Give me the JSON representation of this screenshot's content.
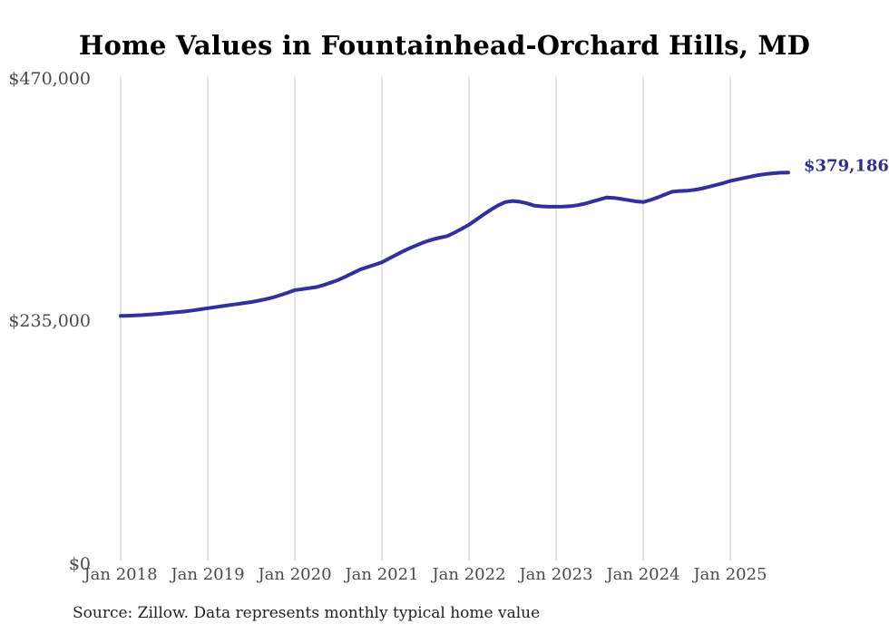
{
  "title": "Home Values in Fountainhead-Orchard Hills, MD",
  "end_label": "$379,186",
  "source_note": "Source: Zillow. Data represents monthly typical home value",
  "colors": {
    "line": "#332f9e",
    "end_label": "#302d90",
    "grid": "#c9c9c9",
    "axis_text": "#4a4a4a",
    "title_text": "#000000",
    "source_text": "#222222",
    "background": "#ffffff"
  },
  "chart_data": {
    "type": "line",
    "title": "Home Values in Fountainhead-Orchard Hills, MD",
    "xlabel": "",
    "ylabel": "",
    "ylim": [
      0,
      470000
    ],
    "y_tick_values": [
      470000,
      235000,
      0
    ],
    "y_tick_labels": [
      "$470,000",
      "$235,000",
      "$0"
    ],
    "x_tick_labels": [
      "Jan 2018",
      "Jan 2019",
      "Jan 2020",
      "Jan 2021",
      "Jan 2022",
      "Jan 2023",
      "Jan 2024",
      "Jan 2025"
    ],
    "grid": "vertical-only",
    "legend": "none",
    "final_value": 379186,
    "final_value_label": "$379,186",
    "series": [
      {
        "name": "Typical home value",
        "months": [
          "2018-01",
          "2018-02",
          "2018-03",
          "2018-04",
          "2018-05",
          "2018-06",
          "2018-07",
          "2018-08",
          "2018-09",
          "2018-10",
          "2018-11",
          "2018-12",
          "2019-01",
          "2019-02",
          "2019-03",
          "2019-04",
          "2019-05",
          "2019-06",
          "2019-07",
          "2019-08",
          "2019-09",
          "2019-10",
          "2019-11",
          "2019-12",
          "2020-01",
          "2020-02",
          "2020-03",
          "2020-04",
          "2020-05",
          "2020-06",
          "2020-07",
          "2020-08",
          "2020-09",
          "2020-10",
          "2020-11",
          "2020-12",
          "2021-01",
          "2021-02",
          "2021-03",
          "2021-04",
          "2021-05",
          "2021-06",
          "2021-07",
          "2021-08",
          "2021-09",
          "2021-10",
          "2021-11",
          "2021-12",
          "2022-01",
          "2022-02",
          "2022-03",
          "2022-04",
          "2022-05",
          "2022-06",
          "2022-07",
          "2022-08",
          "2022-09",
          "2022-10",
          "2022-11",
          "2022-12",
          "2023-01",
          "2023-02",
          "2023-03",
          "2023-04",
          "2023-05",
          "2023-06",
          "2023-07",
          "2023-08",
          "2023-09",
          "2023-10",
          "2023-11",
          "2023-12",
          "2024-01",
          "2024-02",
          "2024-03",
          "2024-04",
          "2024-05",
          "2024-06",
          "2024-07",
          "2024-08",
          "2024-09",
          "2024-10",
          "2024-11",
          "2024-12",
          "2025-01",
          "2025-02",
          "2025-03",
          "2025-04",
          "2025-05",
          "2025-06",
          "2025-07",
          "2025-08",
          "2025-09"
        ],
        "values": [
          240000,
          240200,
          240500,
          240800,
          241300,
          241900,
          242500,
          243100,
          243800,
          244500,
          245400,
          246400,
          247500,
          248500,
          249500,
          250500,
          251500,
          252500,
          253500,
          254800,
          256300,
          258000,
          260200,
          262500,
          265000,
          266000,
          267000,
          268000,
          270000,
          272400,
          275000,
          278200,
          281600,
          285000,
          287400,
          289700,
          292000,
          295700,
          299400,
          303000,
          306200,
          309200,
          312000,
          314200,
          316000,
          317500,
          320800,
          324600,
          328500,
          333400,
          338300,
          343000,
          347200,
          350500,
          351500,
          350800,
          349200,
          347000,
          346300,
          346000,
          346000,
          346200,
          346500,
          347500,
          349000,
          351000,
          353000,
          355000,
          354500,
          353500,
          352300,
          351200,
          350500,
          352500,
          355000,
          357800,
          360500,
          361200,
          361500,
          362300,
          363500,
          365200,
          367000,
          368800,
          371000,
          372500,
          374000,
          375500,
          376800,
          377800,
          378500,
          379000,
          379186
        ]
      }
    ]
  }
}
